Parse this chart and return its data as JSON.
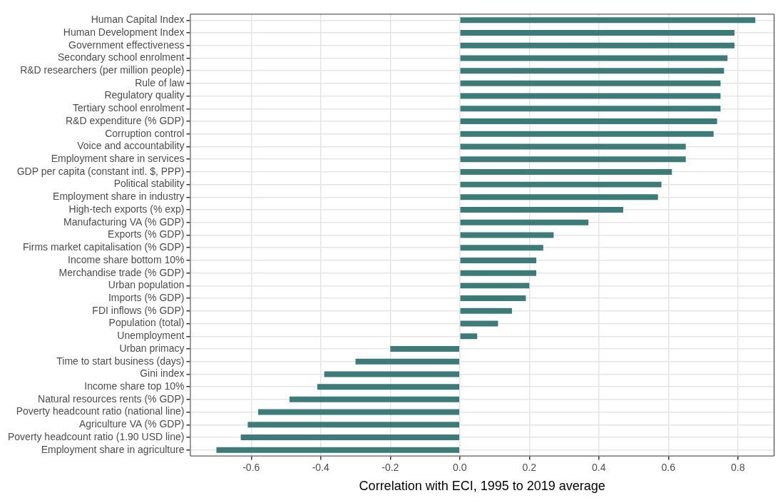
{
  "chart_data": {
    "type": "bar",
    "orientation": "horizontal",
    "xlabel": "Correlation with ECI, 1995 to 2019 average",
    "categories": [
      "Human Capital Index",
      "Human Development Index",
      "Government effectiveness",
      "Secondary school enrolment",
      "R&D researchers (per million people)",
      "Rule of law",
      "Regulatory quality",
      "Tertiary school enrolment",
      "R&D expenditure (% GDP)",
      "Corruption control",
      "Voice and accountability",
      "Employment share in services",
      "GDP per capita (constant intl. $, PPP)",
      "Political stability",
      "Employment share in industry",
      "High-tech exports (% exp)",
      "Manufacturing VA (% GDP)",
      "Exports (% GDP)",
      "Firms market capitalisation (% GDP)",
      "Income share bottom 10%",
      "Merchandise trade (% GDP)",
      "Urban population",
      "Imports (% GDP)",
      "FDI inflows (% GDP)",
      "Population (total)",
      "Unemployment",
      "Urban primacy",
      "Time to start business (days)",
      "Gini index",
      "Income share top 10%",
      "Natural resources rents (% GDP)",
      "Poverty headcount ratio (national line)",
      "Agriculture VA (% GDP)",
      "Poverty headcount ratio (1.90 USD line)",
      "Employment share in agriculture"
    ],
    "values": [
      0.85,
      0.79,
      0.79,
      0.77,
      0.76,
      0.75,
      0.75,
      0.75,
      0.74,
      0.73,
      0.65,
      0.65,
      0.61,
      0.58,
      0.57,
      0.47,
      0.37,
      0.27,
      0.24,
      0.22,
      0.22,
      0.2,
      0.19,
      0.15,
      0.11,
      0.05,
      -0.2,
      -0.3,
      -0.39,
      -0.41,
      -0.49,
      -0.58,
      -0.61,
      -0.63,
      -0.7
    ],
    "color": "#3d7b78",
    "xlim": [
      -0.776,
      0.905
    ],
    "xticks": [
      -0.6,
      -0.4,
      -0.2,
      {
        "value": 0,
        "label": "0.0"
      },
      0.2,
      0.4,
      0.6,
      0.8
    ],
    "grid": true,
    "legend": false
  }
}
